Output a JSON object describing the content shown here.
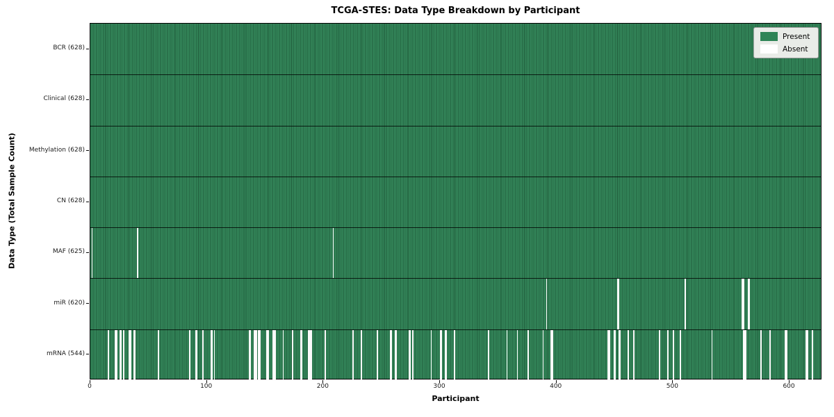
{
  "title": "TCGA-STES: Data Type Breakdown by Participant",
  "colors": {
    "present": "#2e8456",
    "present_edge": "#1f5a3a",
    "absent": "#ffffff",
    "row_divider": "#000000",
    "legend_background": "#e9ece8",
    "figure_background": "#ffffff"
  },
  "chart_data": {
    "type": "heatmap",
    "title": "TCGA-STES: Data Type Breakdown by Participant",
    "xlabel": "Participant",
    "ylabel": "Data Type (Total Sample Count)",
    "x_range": [
      0,
      628
    ],
    "x_ticks": [
      0,
      100,
      200,
      300,
      400,
      500,
      600
    ],
    "n_participants": 628,
    "grid": false,
    "legend_position": "upper right",
    "legend": [
      {
        "label": "Present",
        "color": "#2e8456"
      },
      {
        "label": "Absent",
        "color": "#ffffff"
      }
    ],
    "rows": [
      {
        "key": "bcr",
        "label": "BCR (628)",
        "present_count": 628,
        "absent_participants": []
      },
      {
        "key": "clinical",
        "label": "Clinical (628)",
        "present_count": 628,
        "absent_participants": []
      },
      {
        "key": "methylation",
        "label": "Methylation (628)",
        "present_count": 628,
        "absent_participants": []
      },
      {
        "key": "cn",
        "label": "CN (628)",
        "present_count": 628,
        "absent_participants": []
      },
      {
        "key": "maf",
        "label": "MAF (625)",
        "present_count": 625,
        "absent_participants": [
          1,
          40,
          208
        ]
      },
      {
        "key": "mir",
        "label": "miR (620)",
        "present_count": 620,
        "absent_participants": [
          391,
          452,
          453,
          510,
          559,
          560,
          564,
          565
        ]
      },
      {
        "key": "mrna",
        "label": "mRNA (544)",
        "present_count": 544,
        "absent_participants": [
          15,
          21,
          22,
          25,
          26,
          28,
          33,
          34,
          37,
          38,
          58,
          85,
          90,
          91,
          96,
          103,
          104,
          106,
          136,
          137,
          140,
          141,
          142,
          144,
          145,
          151,
          152,
          156,
          157,
          158,
          165,
          173,
          180,
          181,
          187,
          188,
          189,
          201,
          225,
          232,
          246,
          257,
          258,
          261,
          262,
          273,
          274,
          276,
          292,
          300,
          301,
          304,
          305,
          312,
          341,
          357,
          366,
          375,
          388,
          395,
          396,
          444,
          445,
          449,
          450,
          453,
          454,
          461,
          466,
          488,
          495,
          500,
          506,
          533,
          560,
          561,
          562,
          575,
          583,
          596,
          597,
          614,
          615,
          619
        ]
      }
    ]
  }
}
